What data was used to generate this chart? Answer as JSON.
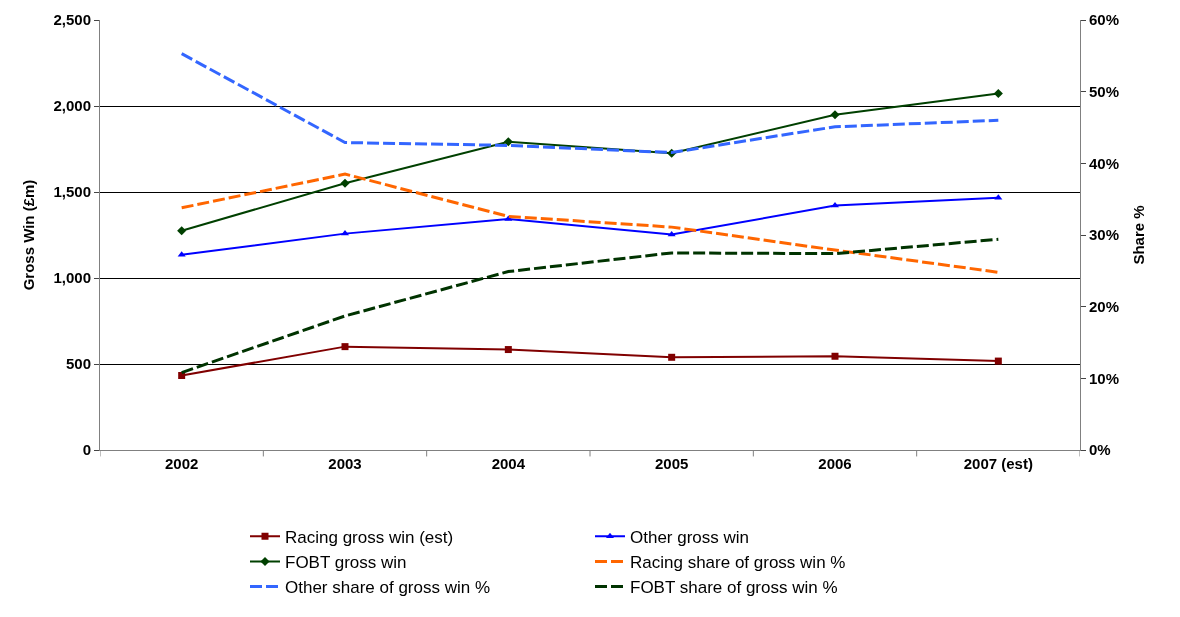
{
  "chart_data": {
    "type": "line",
    "xlabel": null,
    "ylabel": "Gross Win (£m)",
    "y2label": "Share %",
    "categories": [
      "2002",
      "2003",
      "2004",
      "2005",
      "2006",
      "2007 (est)"
    ],
    "series": [
      {
        "name": "Racing gross win (est)",
        "color": "#800000",
        "values": [
          433,
          601,
          584,
          539,
          545,
          517
        ],
        "marker": "square",
        "line_style": "solid"
      },
      {
        "name": "Other gross win",
        "color": "#0000ff",
        "values": [
          1135,
          1258,
          1343,
          1253,
          1421,
          1466
        ],
        "marker": "triangle",
        "line_style": "solid"
      },
      {
        "name": "FOBT gross win",
        "color": "#004000",
        "values": [
          1275,
          1551,
          1792,
          1725,
          1949,
          2073
        ],
        "marker": "diamond",
        "line_style": "solid"
      },
      {
        "name": "Racing share of gross win %",
        "color": "#ff6600",
        "values": [
          33.8,
          38.5,
          32.6,
          31.1,
          27.9,
          24.8
        ],
        "axis": "y2",
        "marker": "none",
        "line_style": "dashed"
      },
      {
        "name": "Other share of gross win %",
        "color": "#3366ff",
        "values": [
          55.3,
          42.9,
          42.5,
          41.5,
          45.1,
          46.0
        ],
        "axis": "y2",
        "marker": "none",
        "line_style": "dashed"
      },
      {
        "name": "FOBT share of gross win %",
        "color": "#003300",
        "values": [
          10.8,
          18.7,
          24.9,
          27.5,
          27.4,
          29.4
        ],
        "axis": "y2",
        "marker": "none",
        "line_style": "dashed"
      }
    ],
    "ylim": [
      0,
      2500
    ],
    "yticks": [
      0,
      500,
      {
        "value": 1000,
        "label": "1,000"
      },
      {
        "value": 1500,
        "label": "1,500"
      },
      {
        "value": 2000,
        "label": "2,000"
      },
      {
        "value": 2500,
        "label": "2,500"
      }
    ],
    "y2lim": [
      0,
      60
    ],
    "y2ticks": [
      {
        "value": 0,
        "label": "0%"
      },
      {
        "value": 10,
        "label": "10%"
      },
      {
        "value": 20,
        "label": "20%"
      },
      {
        "value": 30,
        "label": "30%"
      },
      {
        "value": 40,
        "label": "40%"
      },
      {
        "value": 50,
        "label": "50%"
      },
      {
        "value": 60,
        "label": "60%"
      }
    ],
    "grid": "y",
    "legend": "bottom"
  }
}
